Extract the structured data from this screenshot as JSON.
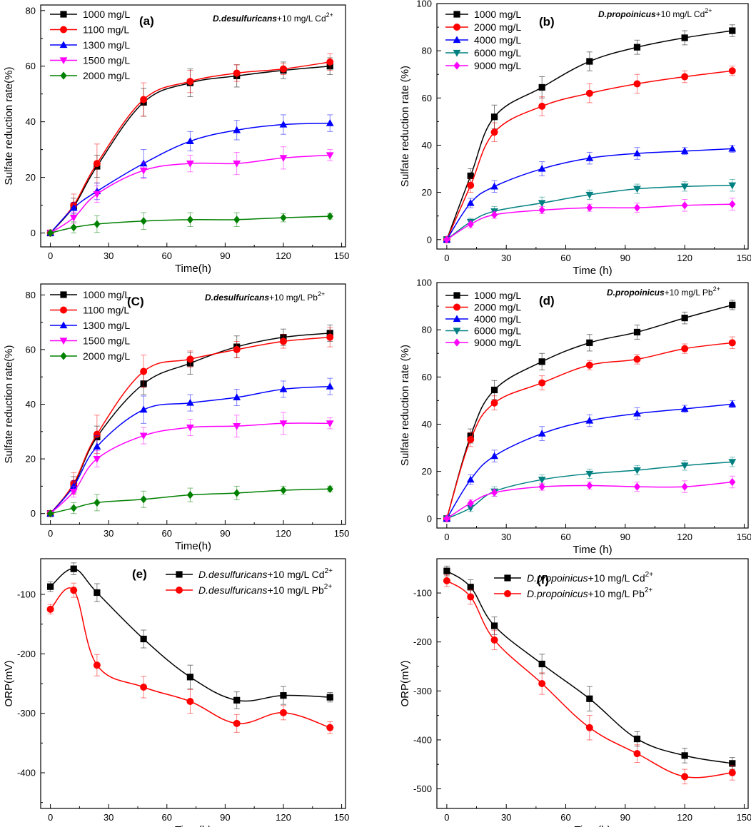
{
  "figure": {
    "description_visible_text": ""
  },
  "chart_data": [
    {
      "type": "line",
      "panel": "(a)",
      "title_italic": "D.desulfuricans",
      "title_rest": "+10 mg/L Cd",
      "title_sup": "2+",
      "xlabel": "Time(h)",
      "ylabel": "Sulfate reduction rate(%)",
      "xlim": [
        -5,
        152
      ],
      "ylim": [
        -5,
        82
      ],
      "xticks": [
        0,
        30,
        60,
        90,
        120,
        150
      ],
      "yticks": [
        0,
        20,
        40,
        60,
        80
      ],
      "legend_position": "top-left",
      "x": [
        0,
        12,
        24,
        48,
        72,
        96,
        120,
        144
      ],
      "series": [
        {
          "name": "1000 mg/L",
          "color": "#000000",
          "marker": "square",
          "values": [
            0,
            9.5,
            24,
            47,
            54,
            56.5,
            58.5,
            60
          ],
          "errors": [
            0.5,
            3,
            4,
            5,
            5,
            4,
            3,
            3
          ]
        },
        {
          "name": "1100 mg/L",
          "color": "#ff0000",
          "marker": "circle",
          "values": [
            0,
            10,
            25,
            48,
            54.5,
            57.5,
            59,
            61.5
          ],
          "errors": [
            0.5,
            4,
            7,
            6,
            4,
            3,
            2,
            3
          ]
        },
        {
          "name": "1300 mg/L",
          "color": "#0000ff",
          "marker": "triangle",
          "values": [
            0,
            9,
            15,
            25,
            33,
            37,
            39,
            39.5
          ],
          "errors": [
            0.5,
            2,
            3,
            5,
            3.5,
            3.5,
            3.5,
            3
          ]
        },
        {
          "name": "1500 mg/L",
          "color": "#ff00ff",
          "marker": "triangle-down",
          "values": [
            0,
            5.5,
            14,
            22.5,
            25,
            25,
            27,
            28
          ],
          "errors": [
            0.5,
            2,
            3,
            3,
            3,
            4,
            4,
            2
          ]
        },
        {
          "name": "2000 mg/L",
          "color": "#008000",
          "marker": "diamond",
          "values": [
            0,
            2,
            3.2,
            4.3,
            4.8,
            4.8,
            5.5,
            6
          ],
          "errors": [
            0.5,
            2,
            3,
            3,
            2.5,
            2.5,
            1.5,
            1
          ]
        }
      ]
    },
    {
      "type": "line",
      "panel": "(b)",
      "title_italic": "D.propoinicus",
      "title_rest": "+10 mg/L Cd",
      "title_sup": "2+",
      "xlabel": "Time (h)",
      "ylabel": "Sulfate reduction rate (%)",
      "xlim": [
        -5,
        152
      ],
      "ylim": [
        -4,
        100
      ],
      "xticks": [
        0,
        30,
        60,
        90,
        120,
        150
      ],
      "yticks": [
        0,
        20,
        40,
        60,
        80,
        100
      ],
      "legend_position": "top-left",
      "x": [
        0,
        12,
        24,
        48,
        72,
        96,
        120,
        144
      ],
      "series": [
        {
          "name": "1000 mg/L",
          "color": "#000000",
          "marker": "square",
          "values": [
            0,
            27,
            52,
            64.5,
            75.5,
            81.5,
            85.5,
            88.5
          ],
          "errors": [
            0.5,
            3,
            5,
            4.5,
            4,
            3,
            3,
            2.5
          ]
        },
        {
          "name": "2000 mg/L",
          "color": "#ff0000",
          "marker": "circle",
          "values": [
            0,
            23,
            45.5,
            56.5,
            62,
            66,
            69,
            71.5
          ],
          "errors": [
            0.5,
            3,
            4,
            4,
            4,
            4,
            2.5,
            2
          ]
        },
        {
          "name": "4000 mg/L",
          "color": "#0000ff",
          "marker": "triangle",
          "values": [
            0,
            15.5,
            22.5,
            30,
            34.5,
            36.5,
            37.5,
            38.5
          ],
          "errors": [
            0.5,
            2,
            2.5,
            3,
            2.5,
            2.5,
            1.5,
            1.5
          ]
        },
        {
          "name": "6000 mg/L",
          "color": "#008080",
          "marker": "triangle-down",
          "values": [
            0,
            7.5,
            12,
            15.5,
            19,
            21.5,
            22.5,
            23
          ],
          "errors": [
            0.5,
            1.5,
            2,
            2.5,
            2,
            2,
            2,
            2.5
          ]
        },
        {
          "name": "9000 mg/L",
          "color": "#ff00ff",
          "marker": "diamond",
          "values": [
            0,
            6.5,
            10.5,
            12.5,
            13.5,
            13.5,
            14.5,
            15
          ],
          "errors": [
            0.5,
            1.5,
            1.5,
            1.5,
            1.5,
            2,
            2.5,
            2.5
          ]
        }
      ]
    },
    {
      "type": "line",
      "panel": "(C)",
      "title_italic": "D.desulfuricans",
      "title_rest": "+10 mg/L Pb",
      "title_sup": "2+",
      "xlabel": "Time(h)",
      "ylabel": "Sulfate reduction rate(%)",
      "xlim": [
        -5,
        152
      ],
      "ylim": [
        -4,
        84
      ],
      "xticks": [
        0,
        30,
        60,
        90,
        120,
        150
      ],
      "yticks": [
        0,
        20,
        40,
        60,
        80
      ],
      "legend_position": "top-left",
      "x": [
        0,
        12,
        24,
        48,
        72,
        96,
        120,
        144
      ],
      "series": [
        {
          "name": "1000 mg/L",
          "color": "#000000",
          "marker": "square",
          "values": [
            0,
            10.5,
            28,
            47.5,
            55,
            61,
            64.5,
            66
          ],
          "errors": [
            0.5,
            3,
            4,
            4,
            4,
            4,
            3,
            3
          ]
        },
        {
          "name": "1100 mg/L",
          "color": "#ff0000",
          "marker": "circle",
          "values": [
            0,
            11,
            29,
            52,
            56.5,
            60,
            63,
            64.5
          ],
          "errors": [
            0.5,
            4,
            7,
            6,
            3,
            3,
            2.5,
            3.5
          ]
        },
        {
          "name": "1300 mg/L",
          "color": "#0000ff",
          "marker": "triangle",
          "values": [
            0,
            10,
            24.5,
            38,
            40.5,
            42.5,
            45.5,
            46.5
          ],
          "errors": [
            0.5,
            2,
            4,
            5,
            3,
            3,
            3,
            3
          ]
        },
        {
          "name": "1500 mg/L",
          "color": "#ff00ff",
          "marker": "triangle-down",
          "values": [
            0,
            8,
            20,
            28.5,
            31.5,
            32,
            33,
            33
          ],
          "errors": [
            0.5,
            2,
            3,
            3,
            3,
            4,
            4,
            2
          ]
        },
        {
          "name": "2000 mg/L",
          "color": "#008000",
          "marker": "diamond",
          "values": [
            0,
            2,
            4,
            5.2,
            6.8,
            7.5,
            8.5,
            9
          ],
          "errors": [
            0.5,
            2,
            3,
            3,
            2.5,
            2.5,
            1.5,
            1
          ]
        }
      ]
    },
    {
      "type": "line",
      "panel": "(d)",
      "title_italic": "D.propoinicus",
      "title_rest": "+10 mg/L Pb",
      "title_sup": "2+",
      "xlabel": "Time (h)",
      "ylabel": "Sulfate reduction rate (%)",
      "xlim": [
        -5,
        152
      ],
      "ylim": [
        -4,
        100
      ],
      "xticks": [
        0,
        30,
        60,
        90,
        120,
        150
      ],
      "yticks": [
        0,
        20,
        40,
        60,
        80,
        100
      ],
      "legend_position": "top-left",
      "x": [
        0,
        12,
        24,
        48,
        72,
        96,
        120,
        144
      ],
      "series": [
        {
          "name": "1000 mg/L",
          "color": "#000000",
          "marker": "square",
          "values": [
            0,
            35,
            54.5,
            66.5,
            74.5,
            79,
            85,
            90.5
          ],
          "errors": [
            0.5,
            3,
            4,
            3.5,
            3.5,
            3,
            2.5,
            2
          ]
        },
        {
          "name": "2000 mg/L",
          "color": "#ff0000",
          "marker": "circle",
          "values": [
            0,
            33.5,
            49,
            57.5,
            65,
            67.5,
            72,
            74.5
          ],
          "errors": [
            0.5,
            3,
            3,
            3,
            2,
            2,
            2,
            2.5
          ]
        },
        {
          "name": "4000 mg/L",
          "color": "#0000ff",
          "marker": "triangle",
          "values": [
            0,
            16.5,
            26.5,
            36,
            41.5,
            44.5,
            46.5,
            48.5
          ],
          "errors": [
            0.5,
            2,
            2.5,
            3,
            2.5,
            2.5,
            1.5,
            1.5
          ]
        },
        {
          "name": "6000 mg/L",
          "color": "#008080",
          "marker": "triangle-down",
          "values": [
            0,
            4.5,
            11.5,
            16.5,
            19,
            20.5,
            22.5,
            24
          ],
          "errors": [
            0.5,
            1.5,
            2,
            2,
            2,
            2,
            2,
            2
          ]
        },
        {
          "name": "9000 mg/L",
          "color": "#ff00ff",
          "marker": "diamond",
          "values": [
            0,
            6.5,
            11,
            13.5,
            14,
            13.5,
            13.5,
            15.5
          ],
          "errors": [
            0.5,
            1.5,
            1.5,
            1.5,
            1.5,
            2,
            2.5,
            2.5
          ]
        }
      ]
    },
    {
      "type": "line",
      "panel": "(e)",
      "xlabel": "Time(h)",
      "ylabel": "ORP(mV)",
      "xlim": [
        -5,
        152
      ],
      "ylim": [
        -460,
        -40
      ],
      "xticks": [
        0,
        30,
        60,
        90,
        120,
        150
      ],
      "yticks": [
        -100,
        -200,
        -300,
        -400
      ],
      "legend_position": "top-right",
      "x": [
        0,
        12,
        24,
        48,
        72,
        96,
        120,
        144
      ],
      "series": [
        {
          "name_italic": "D.desulfuricans",
          "name_rest": "+10 mg/L Cd",
          "name_sup": "2+",
          "color": "#000000",
          "marker": "square",
          "values": [
            -87,
            -57,
            -97,
            -175,
            -239,
            -278,
            -270,
            -273
          ],
          "errors": [
            8,
            10,
            15,
            15,
            20,
            14,
            15,
            8
          ]
        },
        {
          "name_italic": "D.desulfuricans",
          "name_rest": "+10 mg/L Pb",
          "name_sup": "2+",
          "color": "#ff0000",
          "marker": "circle",
          "values": [
            -125,
            -93,
            -219,
            -256,
            -280,
            -317,
            -299,
            -324
          ],
          "errors": [
            8,
            12,
            18,
            18,
            20,
            15,
            12,
            10
          ]
        }
      ]
    },
    {
      "type": "line",
      "panel": "(f)",
      "xlabel": "Time(h)",
      "ylabel": "ORP(mV)",
      "xlim": [
        -5,
        152
      ],
      "ylim": [
        -540,
        -30
      ],
      "xticks": [
        0,
        30,
        60,
        90,
        120,
        150
      ],
      "yticks": [
        -100,
        -200,
        -300,
        -400,
        -500
      ],
      "legend_position": "top-right",
      "x": [
        0,
        12,
        24,
        48,
        72,
        96,
        120,
        144
      ],
      "series": [
        {
          "name_italic": "D.propoinicus",
          "name_rest": "+10 mg/L Cd",
          "name_sup": "2+",
          "color": "#000000",
          "marker": "square",
          "values": [
            -55,
            -88,
            -167,
            -245,
            -316,
            -398,
            -432,
            -448
          ],
          "errors": [
            10,
            15,
            18,
            20,
            25,
            15,
            15,
            12
          ]
        },
        {
          "name_italic": "D.propoinicus",
          "name_rest": "+10 mg/L Pb",
          "name_sup": "2+",
          "color": "#ff0000",
          "marker": "circle",
          "values": [
            -75,
            -108,
            -196,
            -285,
            -375,
            -428,
            -475,
            -467
          ],
          "errors": [
            12,
            15,
            20,
            22,
            25,
            18,
            15,
            15
          ]
        }
      ]
    }
  ]
}
